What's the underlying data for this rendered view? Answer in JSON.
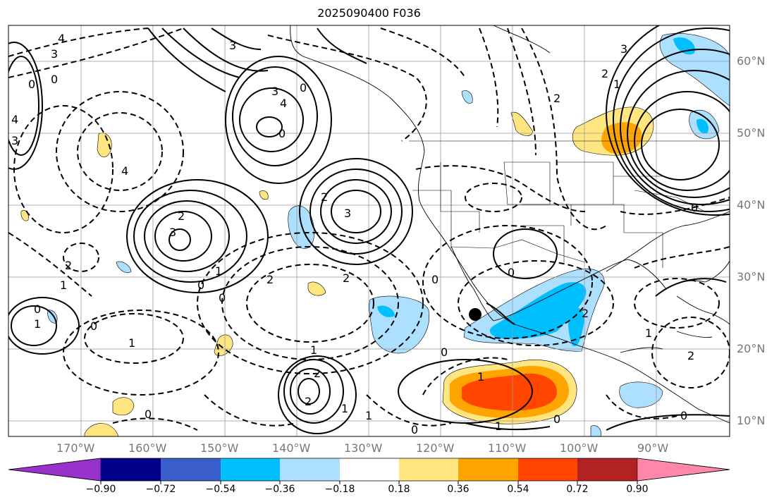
{
  "title": "2025090400 F036",
  "lon_labels": [
    "170°W",
    "160°W",
    "150°W",
    "140°W",
    "130°W",
    "120°W",
    "110°W",
    "100°W",
    "90°W"
  ],
  "lat_labels": [
    "60°N",
    "50°N",
    "40°N",
    "30°N",
    "20°N",
    "10°N"
  ],
  "colorbar": {
    "ticks": [
      "−0.90",
      "−0.72",
      "−0.54",
      "−0.36",
      "−0.18",
      "0.18",
      "0.36",
      "0.54",
      "0.72",
      "0.90"
    ],
    "colors": [
      "#9932CC",
      "#00008B",
      "#3A5FCD",
      "#00BFFF",
      "#ADDFFF",
      "#FFFFFF",
      "#FFE680",
      "#FFA500",
      "#FF4500",
      "#B22222",
      "#FF88AA"
    ]
  },
  "contour_labels": [
    "4",
    "3",
    "0",
    "4",
    "3",
    "0",
    "3",
    "4",
    "0",
    "3",
    "0",
    "4",
    "2",
    "2",
    "3",
    "3",
    "0",
    "0",
    "2",
    "1",
    "1",
    "0",
    "1",
    "0",
    "2",
    "1",
    "0",
    "0",
    "0",
    "1",
    "2",
    "2",
    "2",
    "1",
    "0",
    "1",
    "2",
    "3",
    "2",
    "1",
    "0",
    "1",
    "0",
    "0",
    "1",
    "2",
    "2",
    "1",
    "0"
  ],
  "marker": {
    "name": "location-marker",
    "lon": -115.3,
    "lat": 24.9
  },
  "colors": {
    "positive_contour": "#000000",
    "frame": "#000000",
    "grid": "#999999",
    "coast": "#000000"
  }
}
